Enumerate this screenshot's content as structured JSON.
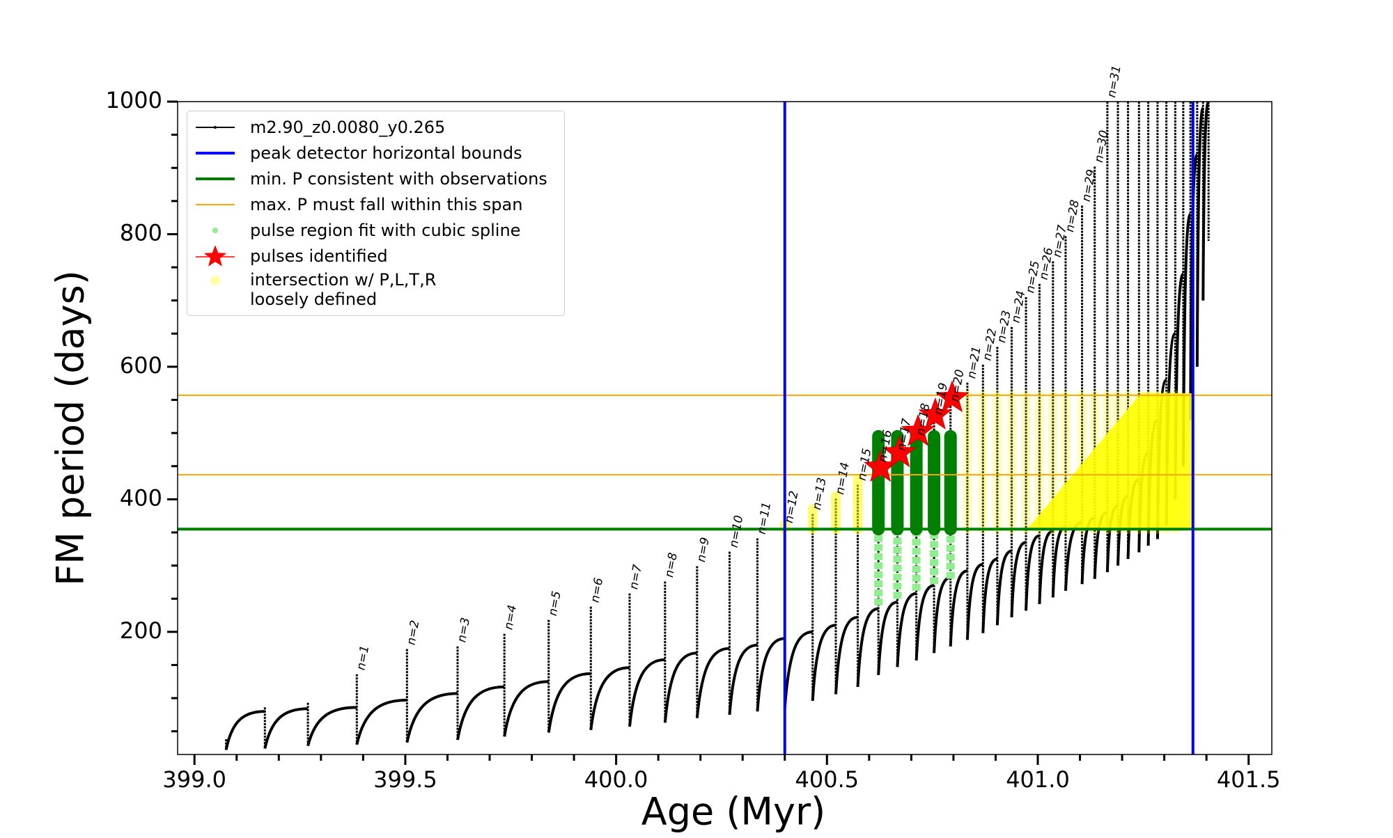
{
  "chart_data": {
    "type": "line",
    "xlabel": "Age (Myr)",
    "ylabel": "FM period (days)",
    "xlim": [
      398.96,
      401.555
    ],
    "ylim": [
      15,
      1000
    ],
    "xticks": [
      {
        "value": 399,
        "label": "399.0"
      },
      {
        "value": 399.5,
        "label": "399.5"
      },
      {
        "value": 400,
        "label": "400.0"
      },
      {
        "value": 400.5,
        "label": "400.5"
      },
      {
        "value": 401,
        "label": "401.0"
      },
      {
        "value": 401.5,
        "label": "401.5"
      }
    ],
    "yticks": [
      200,
      400,
      600,
      800,
      1000
    ],
    "xminor": [
      399.1,
      399.2,
      399.3,
      399.4,
      399.6,
      399.7,
      399.8,
      399.9,
      400.1,
      400.2,
      400.3,
      400.4,
      400.6,
      400.7,
      400.8,
      400.9,
      401.1,
      401.2,
      401.3,
      401.4
    ],
    "yminor": [
      50,
      100,
      150,
      250,
      300,
      350,
      450,
      500,
      550,
      650,
      700,
      750,
      850,
      900,
      950
    ],
    "series": [
      {
        "name": "m2.90_z0.0080_y0.265",
        "color": "#000000",
        "kind": "pulses",
        "x": [
          399.075,
          399.167,
          399.269,
          399.385,
          399.504,
          399.624,
          399.735,
          399.84,
          399.94,
          400.032,
          400.116,
          400.192,
          400.269,
          400.335,
          400.4,
          400.466,
          400.521,
          400.573,
          400.622,
          400.667,
          400.712,
          400.754,
          400.793,
          400.833,
          400.87,
          400.904,
          400.938,
          400.972,
          401.004,
          401.036,
          401.066,
          401.105,
          401.135,
          401.165,
          401.19,
          401.214,
          401.24,
          401.262,
          401.284,
          401.305,
          401.326,
          401.345,
          401.362,
          401.378,
          401.392,
          401.405
        ],
        "pre": [
          36,
          80,
          84,
          86,
          97,
          107,
          117,
          125,
          137,
          146,
          158,
          168,
          175,
          180,
          190,
          200,
          210,
          222,
          235,
          245,
          258,
          270,
          282,
          292,
          302,
          310,
          322,
          335,
          345,
          352,
          358,
          365,
          372,
          380,
          390,
          405,
          430,
          470,
          520,
          580,
          650,
          740,
          830,
          920,
          990,
          1000
        ],
        "peak": [
          38,
          86,
          93,
          136,
          174,
          178,
          197,
          218,
          238,
          258,
          276,
          299,
          321,
          341,
          358,
          378,
          401,
          422,
          450,
          467,
          490,
          521,
          541,
          576,
          603,
          630,
          660,
          705,
          725,
          759,
          797,
          843,
          902,
          1000,
          1000,
          1000,
          1000,
          1000,
          1000,
          1000,
          1000,
          1000,
          1000,
          1000,
          1000,
          1000
        ],
        "post": [
          22,
          24,
          28,
          30,
          33,
          37,
          42,
          48,
          52,
          57,
          63,
          70,
          75,
          80,
          85,
          96,
          106,
          117,
          135,
          147,
          157,
          168,
          178,
          188,
          198,
          210,
          222,
          232,
          242,
          252,
          262,
          272,
          280,
          290,
          300,
          310,
          320,
          330,
          340,
          360,
          400,
          450,
          520,
          600,
          700,
          790
        ],
        "labels": [
          null,
          null,
          null,
          "n=1",
          "n=2",
          "n=3",
          "n=4",
          "n=5",
          "n=6",
          "n=7",
          "n=8",
          "n=9",
          "n=10",
          "n=11",
          "n=12",
          "n=13",
          "n=14",
          "n=15",
          "n=16",
          "n=17",
          "n=18",
          "n=19",
          "n=20",
          "n=21",
          "n=22",
          "n=23",
          "n=24",
          "n=25",
          "n=26",
          "n=27",
          "n=28",
          "n=29",
          "n=30",
          "n=31",
          null,
          null,
          null,
          null,
          null,
          null,
          null,
          null,
          null,
          null,
          null,
          null
        ]
      },
      {
        "name": "peak detector horizontal bounds",
        "color": "#0000ff",
        "kind": "vline",
        "x": [
          400.4,
          401.368
        ]
      },
      {
        "name": "min. P consistent with observations",
        "color": "#008000",
        "kind": "hline",
        "y": [
          355
        ]
      },
      {
        "name": "max. P must fall within this span",
        "color": "#ffa500",
        "kind": "hline",
        "y": [
          437,
          557
        ]
      },
      {
        "name": "pulse region fit with cubic spline",
        "color": "#90ee90",
        "fill_above": "#008000",
        "kind": "range",
        "x": [
          400.622,
          400.667,
          400.712,
          400.754,
          400.793
        ],
        "low": [
          240,
          250,
          262,
          272,
          280
        ],
        "high": [
          495,
          495,
          500,
          495,
          495
        ]
      },
      {
        "name": "pulses identified",
        "color": "#ff0000",
        "kind": "star",
        "x": [
          400.627,
          400.672,
          400.716,
          400.757,
          400.797
        ],
        "values": [
          448,
          470,
          502,
          527,
          553
        ]
      },
      {
        "name": "intersection w/ P,L,T,R\nloosely defined",
        "color": "#ffff00",
        "kind": "band",
        "x": [
          400.4,
          400.466,
          400.521,
          400.573,
          400.833,
          400.87,
          400.904,
          400.938,
          400.972,
          401.004,
          401.036,
          401.066,
          401.105,
          401.135,
          401.165,
          401.19,
          401.214,
          401.24,
          401.262,
          401.284,
          401.305,
          401.326
        ],
        "low": [
          355,
          355,
          355,
          355,
          355,
          355,
          355,
          355,
          355,
          355,
          355,
          355,
          355,
          355,
          355,
          355,
          355,
          355,
          355,
          355,
          355,
          355
        ],
        "high": [
          362,
          385,
          405,
          430,
          557,
          557,
          557,
          557,
          557,
          557,
          557,
          557,
          557,
          557,
          557,
          557,
          557,
          557,
          557,
          557,
          557,
          557
        ],
        "region_x": [
          400.975,
          401.245,
          401.37,
          401.37
        ],
        "region_y": [
          355,
          560,
          560,
          355
        ]
      }
    ]
  }
}
